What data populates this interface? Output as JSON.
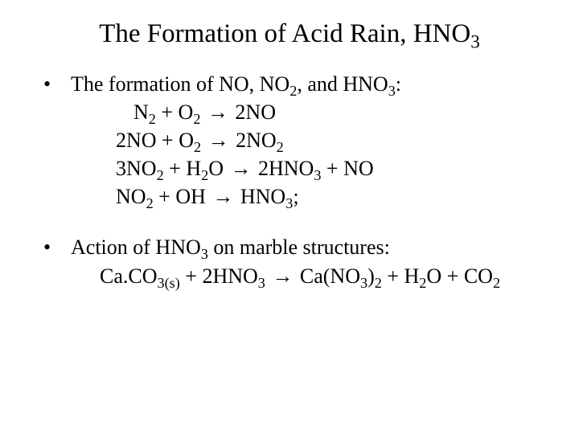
{
  "title_pre": "The Formation of Acid Rain, HNO",
  "title_sub": "3",
  "bullet1_pre": "The formation of NO, NO",
  "bullet1_mid1_sub": "2",
  "bullet1_mid1": ", and HNO",
  "bullet1_mid2_sub": "3",
  "bullet1_end": ":",
  "eq1_a": "N",
  "eq1_a_sub": "2",
  "eq1_b": "  +  O",
  "eq1_b_sub": "2",
  "eq1_c": "  ",
  "arrow": "→",
  "eq1_d": "  2NO",
  "eq2_a": "2NO  +  O",
  "eq2_a_sub": "2",
  "eq2_b": " ",
  "eq2_c": " 2NO",
  "eq2_c_sub": "2",
  "eq3_a": "3NO",
  "eq3_a_sub": "2",
  "eq3_b": "  +  H",
  "eq3_b_sub": "2",
  "eq3_c": "O ",
  "eq3_d": " 2HNO",
  "eq3_d_sub": "3",
  "eq3_e": "  +  NO",
  "eq4_a": "NO",
  "eq4_a_sub": "2",
  "eq4_b": "  +  OH ",
  "eq4_c": " HNO",
  "eq4_c_sub": "3",
  "eq4_d": ";",
  "bullet2_pre": "Action of HNO",
  "bullet2_sub": "3",
  "bullet2_end": " on marble structures:",
  "eq5_a": "Ca.CO",
  "eq5_a_sub": "3(s)",
  "eq5_b": " + 2HNO",
  "eq5_b_sub": "3",
  "eq5_c": " ",
  "eq5_d": " Ca(NO",
  "eq5_d_sub": "3",
  "eq5_e": ")",
  "eq5_e_sub": "2",
  "eq5_f": " + H",
  "eq5_f_sub": "2",
  "eq5_g": "O + CO",
  "eq5_g_sub": "2",
  "dot": "•",
  "colors": {
    "background": "#ffffff",
    "text": "#000000"
  },
  "typography": {
    "font_family": "Times New Roman",
    "title_fontsize_pt": 25,
    "body_fontsize_pt": 20
  }
}
